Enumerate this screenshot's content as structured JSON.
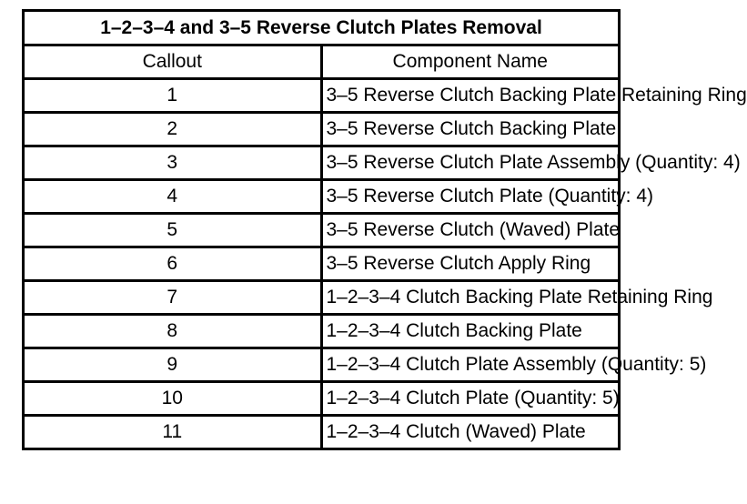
{
  "table": {
    "title": "1–2–3–4 and 3–5 Reverse Clutch Plates Removal",
    "headers": {
      "callout": "Callout",
      "component": "Component Name"
    },
    "rows": [
      {
        "callout": "1",
        "name": "3–5 Reverse Clutch Backing Plate Retaining Ring"
      },
      {
        "callout": "2",
        "name": "3–5 Reverse Clutch Backing Plate"
      },
      {
        "callout": "3",
        "name": "3–5 Reverse Clutch Plate Assembly (Quantity: 4)"
      },
      {
        "callout": "4",
        "name": "3–5 Reverse Clutch Plate (Quantity: 4)"
      },
      {
        "callout": "5",
        "name": "3–5 Reverse Clutch (Waved) Plate"
      },
      {
        "callout": "6",
        "name": "3–5 Reverse Clutch Apply Ring"
      },
      {
        "callout": "7",
        "name": "1–2–3–4 Clutch Backing Plate Retaining Ring"
      },
      {
        "callout": "8",
        "name": "1–2–3–4 Clutch Backing Plate"
      },
      {
        "callout": "9",
        "name": "1–2–3–4 Clutch Plate Assembly (Quantity: 5)"
      },
      {
        "callout": "10",
        "name": "1–2–3–4 Clutch Plate (Quantity: 5)"
      },
      {
        "callout": "11",
        "name": "1–2–3–4 Clutch (Waved) Plate"
      }
    ]
  }
}
